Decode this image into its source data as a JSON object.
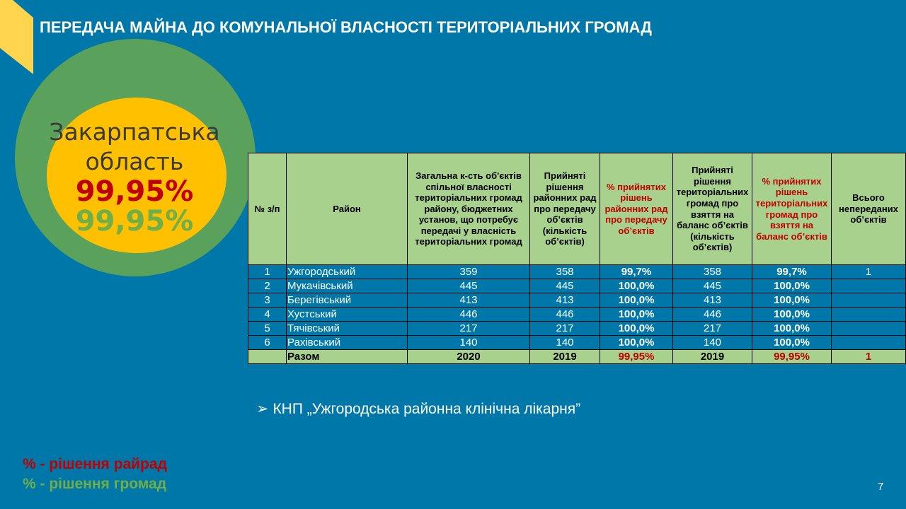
{
  "title": "ПЕРЕДАЧА МАЙНА ДО КОМУНАЛЬНОЇ ВЛАСНОСТІ ТЕРИТОРІАЛЬНИХ ГРОМАД",
  "circle": {
    "region_line1": "Закарпатська",
    "region_line2": "область",
    "pct_rayrad": "99,95%",
    "pct_gromad": "99,95%"
  },
  "colors": {
    "background": "#0077a9",
    "header": "#a9d18e",
    "red": "#c00000",
    "green": "#6fae48",
    "yellow": "#ffc000"
  },
  "table": {
    "headers": [
      "№ з/п",
      "Район",
      "Загальна к-сть об'єктів спільної власності територіальних громад району, бюджетних установ, що потребує передачі у власність територіальних громад",
      "Прийняті рішення районних рад про передачу об’єктів (кількість об’єктів)",
      "% прийнятих рішень районних рад про передачу об’єктів",
      "Прийняті рішення територіальних громад про взяття на баланс об’єктів (кількість об’єктів)",
      "% прийнятих рішень територіальних громад про взяття на баланс об’єктів",
      "Всього непереданих об’єктів"
    ],
    "rows": [
      [
        "1",
        "Ужгородський",
        "359",
        "358",
        "99,7%",
        "358",
        "99,7%",
        "1"
      ],
      [
        "2",
        "Мукачівський",
        "445",
        "445",
        "100,0%",
        "445",
        "100,0%",
        ""
      ],
      [
        "3",
        "Берегівський",
        "413",
        "413",
        "100,0%",
        "413",
        "100,0%",
        ""
      ],
      [
        "4",
        "Хустський",
        "446",
        "446",
        "100,0%",
        "446",
        "100,0%",
        ""
      ],
      [
        "5",
        "Тячівський",
        "217",
        "217",
        "100,0%",
        "217",
        "100,0%",
        ""
      ],
      [
        "6",
        "Рахівський",
        "140",
        "140",
        "100,0%",
        "140",
        "100,0%",
        ""
      ]
    ],
    "total": [
      "",
      "Разом",
      "2020",
      "2019",
      "99,95%",
      "2019",
      "99,95%",
      "1"
    ]
  },
  "note": "КНП „Ужгородська районна клінічна лікарня”",
  "legend": [
    "% - рішення райрад",
    "% - рішення громад"
  ],
  "page": "7"
}
